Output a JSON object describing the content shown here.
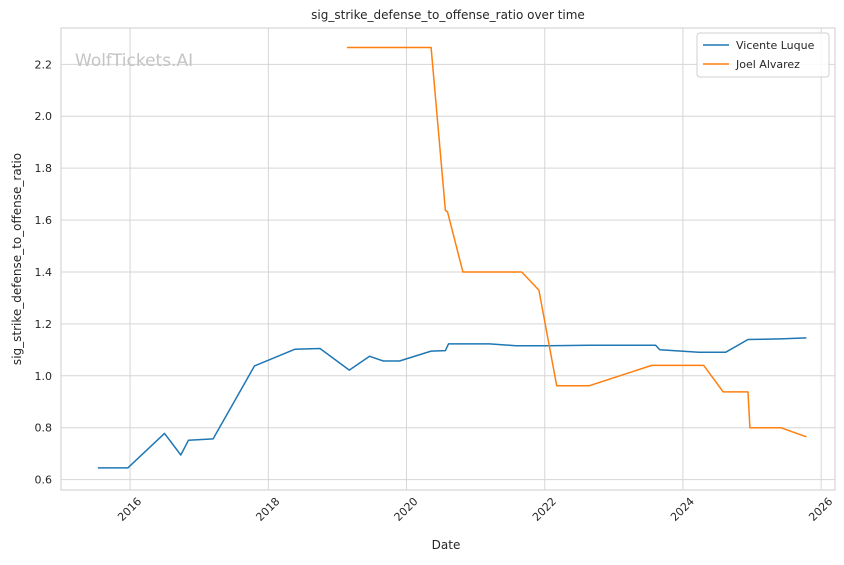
{
  "watermark": "WolfTickets.AI",
  "chart_data": {
    "type": "line",
    "title": "sig_strike_defense_to_offense_ratio over time",
    "xlabel": "Date",
    "ylabel": "sig_strike_defense_to_offense_ratio",
    "x_is_date": true,
    "xlim": [
      "2015-01-01",
      "2026-03-15"
    ],
    "ylim": [
      0.56,
      2.34
    ],
    "x_ticks": [
      "2016",
      "2018",
      "2020",
      "2022",
      "2024",
      "2026"
    ],
    "y_ticks": [
      "0.6",
      "0.8",
      "1.0",
      "1.2",
      "1.4",
      "1.6",
      "1.8",
      "2.0",
      "2.2"
    ],
    "grid": true,
    "legend_position": "top-right",
    "series": [
      {
        "name": "Vicente Luque",
        "color": "#1f77b4",
        "points": [
          [
            "2015-07-15",
            0.645
          ],
          [
            "2015-12-20",
            0.645
          ],
          [
            "2016-07-01",
            0.778
          ],
          [
            "2016-09-25",
            0.695
          ],
          [
            "2016-11-05",
            0.752
          ],
          [
            "2017-03-15",
            0.757
          ],
          [
            "2017-10-20",
            1.038
          ],
          [
            "2018-05-20",
            1.102
          ],
          [
            "2018-10-01",
            1.105
          ],
          [
            "2019-03-05",
            1.022
          ],
          [
            "2019-06-20",
            1.075
          ],
          [
            "2019-09-01",
            1.057
          ],
          [
            "2019-11-25",
            1.057
          ],
          [
            "2020-05-10",
            1.095
          ],
          [
            "2020-07-25",
            1.097
          ],
          [
            "2020-08-10",
            1.123
          ],
          [
            "2021-03-15",
            1.123
          ],
          [
            "2021-08-01",
            1.116
          ],
          [
            "2022-01-15",
            1.116
          ],
          [
            "2022-08-25",
            1.118
          ],
          [
            "2023-08-10",
            1.118
          ],
          [
            "2023-09-01",
            1.1
          ],
          [
            "2024-03-25",
            1.091
          ],
          [
            "2024-08-15",
            1.091
          ],
          [
            "2024-12-10",
            1.14
          ],
          [
            "2025-06-01",
            1.142
          ],
          [
            "2025-10-15",
            1.146
          ]
        ]
      },
      {
        "name": "Joel Alvarez",
        "color": "#ff7f0e",
        "points": [
          [
            "2019-02-20",
            2.265
          ],
          [
            "2020-05-10",
            2.265
          ],
          [
            "2020-07-25",
            1.637
          ],
          [
            "2020-08-05",
            1.632
          ],
          [
            "2020-10-25",
            1.4
          ],
          [
            "2021-09-01",
            1.4
          ],
          [
            "2021-12-01",
            1.33
          ],
          [
            "2022-03-05",
            0.962
          ],
          [
            "2022-08-25",
            0.962
          ],
          [
            "2023-07-20",
            1.04
          ],
          [
            "2024-04-20",
            1.04
          ],
          [
            "2024-08-01",
            0.938
          ],
          [
            "2024-12-10",
            0.938
          ],
          [
            "2024-12-20",
            0.8
          ],
          [
            "2025-06-01",
            0.8
          ],
          [
            "2025-10-15",
            0.765
          ]
        ]
      }
    ]
  }
}
